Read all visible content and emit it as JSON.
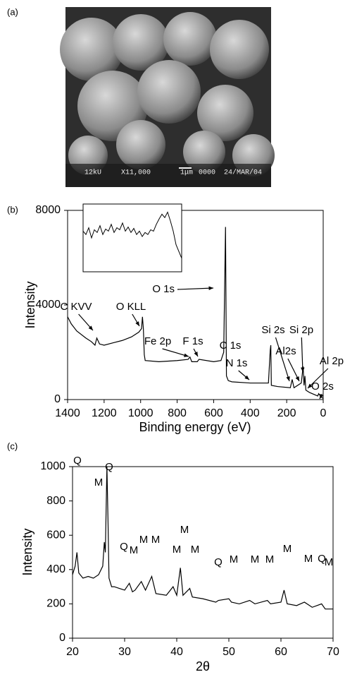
{
  "image_panel": {
    "label": "(a)",
    "caption": [
      "12kU",
      "X11,000",
      "1μm",
      "0000",
      "24/MAR/04"
    ]
  },
  "chart_data": [
    {
      "type": "line",
      "label": "(b)",
      "xlabel": "Binding energy (eV)",
      "ylabel": "Intensity",
      "color": "#000000",
      "xlim": [
        1400,
        0
      ],
      "xticks": [
        1400,
        1200,
        1000,
        800,
        600,
        400,
        200,
        0
      ],
      "ylim": [
        0,
        8000
      ],
      "yticks": [
        0,
        4000,
        8000
      ],
      "x": [
        1400,
        1380,
        1350,
        1300,
        1270,
        1250,
        1240,
        1225,
        1200,
        1150,
        1100,
        1050,
        1010,
        995,
        990,
        985,
        980,
        975,
        900,
        800,
        740,
        730,
        720,
        690,
        680,
        600,
        560,
        545,
        535,
        530,
        520,
        500,
        400,
        300,
        290,
        287,
        284,
        250,
        180,
        170,
        160,
        120,
        110,
        105,
        100,
        95,
        75,
        30,
        25,
        10,
        0
      ],
      "values": [
        3500,
        3200,
        2900,
        2600,
        2450,
        2300,
        2600,
        2350,
        2300,
        2400,
        2500,
        2650,
        2850,
        3000,
        3500,
        3000,
        1900,
        1650,
        1600,
        1650,
        1700,
        1800,
        1600,
        1600,
        1700,
        1600,
        1650,
        2000,
        7300,
        1000,
        800,
        750,
        700,
        700,
        2100,
        2300,
        600,
        550,
        500,
        850,
        500,
        700,
        1400,
        600,
        1000,
        400,
        300,
        150,
        250,
        100,
        50
      ],
      "inset": {
        "ylim": [
          0,
          100
        ],
        "values": [
          60,
          55,
          65,
          50,
          62,
          58,
          68,
          55,
          63,
          60,
          70,
          58,
          65,
          62,
          72,
          60,
          66,
          58,
          64,
          55,
          60,
          52,
          58,
          55,
          62,
          60,
          70,
          78,
          85,
          80,
          88,
          75,
          60,
          40,
          30,
          20
        ]
      },
      "annotations": [
        "C KVV",
        "O KLL",
        "O 1s",
        "Fe 2p",
        "F 1s",
        "C 1s",
        "N 1s",
        "Si 2s",
        "Si 2p",
        "Al2s",
        "Al 2p",
        "O 2s"
      ]
    },
    {
      "type": "line",
      "label": "(c)",
      "xlabel": "2θ",
      "ylabel": "Intensity",
      "color": "#000000",
      "xlim": [
        20,
        70
      ],
      "xticks": [
        20,
        30,
        40,
        50,
        60,
        70
      ],
      "ylim": [
        0,
        1000
      ],
      "yticks": [
        0,
        200,
        400,
        600,
        800,
        1000
      ],
      "x": [
        20,
        20.5,
        20.85,
        21.2,
        22,
        23,
        24,
        25,
        25.8,
        26.1,
        26.3,
        26.6,
        26.8,
        27.0,
        27.5,
        28,
        29,
        30,
        30.9,
        31.5,
        32,
        33.2,
        34,
        35.2,
        36,
        38,
        39.3,
        40,
        40.7,
        41.2,
        42.5,
        43,
        45,
        47.5,
        48,
        50,
        50.5,
        52,
        54,
        55,
        57.4,
        58,
        60,
        60.6,
        61.2,
        63,
        64.5,
        66,
        67.8,
        68.5,
        70
      ],
      "values": [
        370,
        420,
        500,
        380,
        350,
        360,
        350,
        370,
        420,
        560,
        500,
        1000,
        700,
        350,
        300,
        300,
        290,
        280,
        320,
        270,
        280,
        330,
        280,
        360,
        260,
        250,
        300,
        250,
        410,
        250,
        290,
        240,
        230,
        210,
        220,
        230,
        210,
        200,
        220,
        200,
        220,
        200,
        210,
        280,
        200,
        190,
        210,
        180,
        200,
        170,
        170
      ],
      "annotations": [
        "Q",
        "M",
        "Q",
        "Q",
        "M",
        "M",
        "M",
        "M",
        "M",
        "M",
        "Q",
        "M",
        "M",
        "M",
        "M",
        "M",
        "Q",
        "M"
      ]
    }
  ]
}
